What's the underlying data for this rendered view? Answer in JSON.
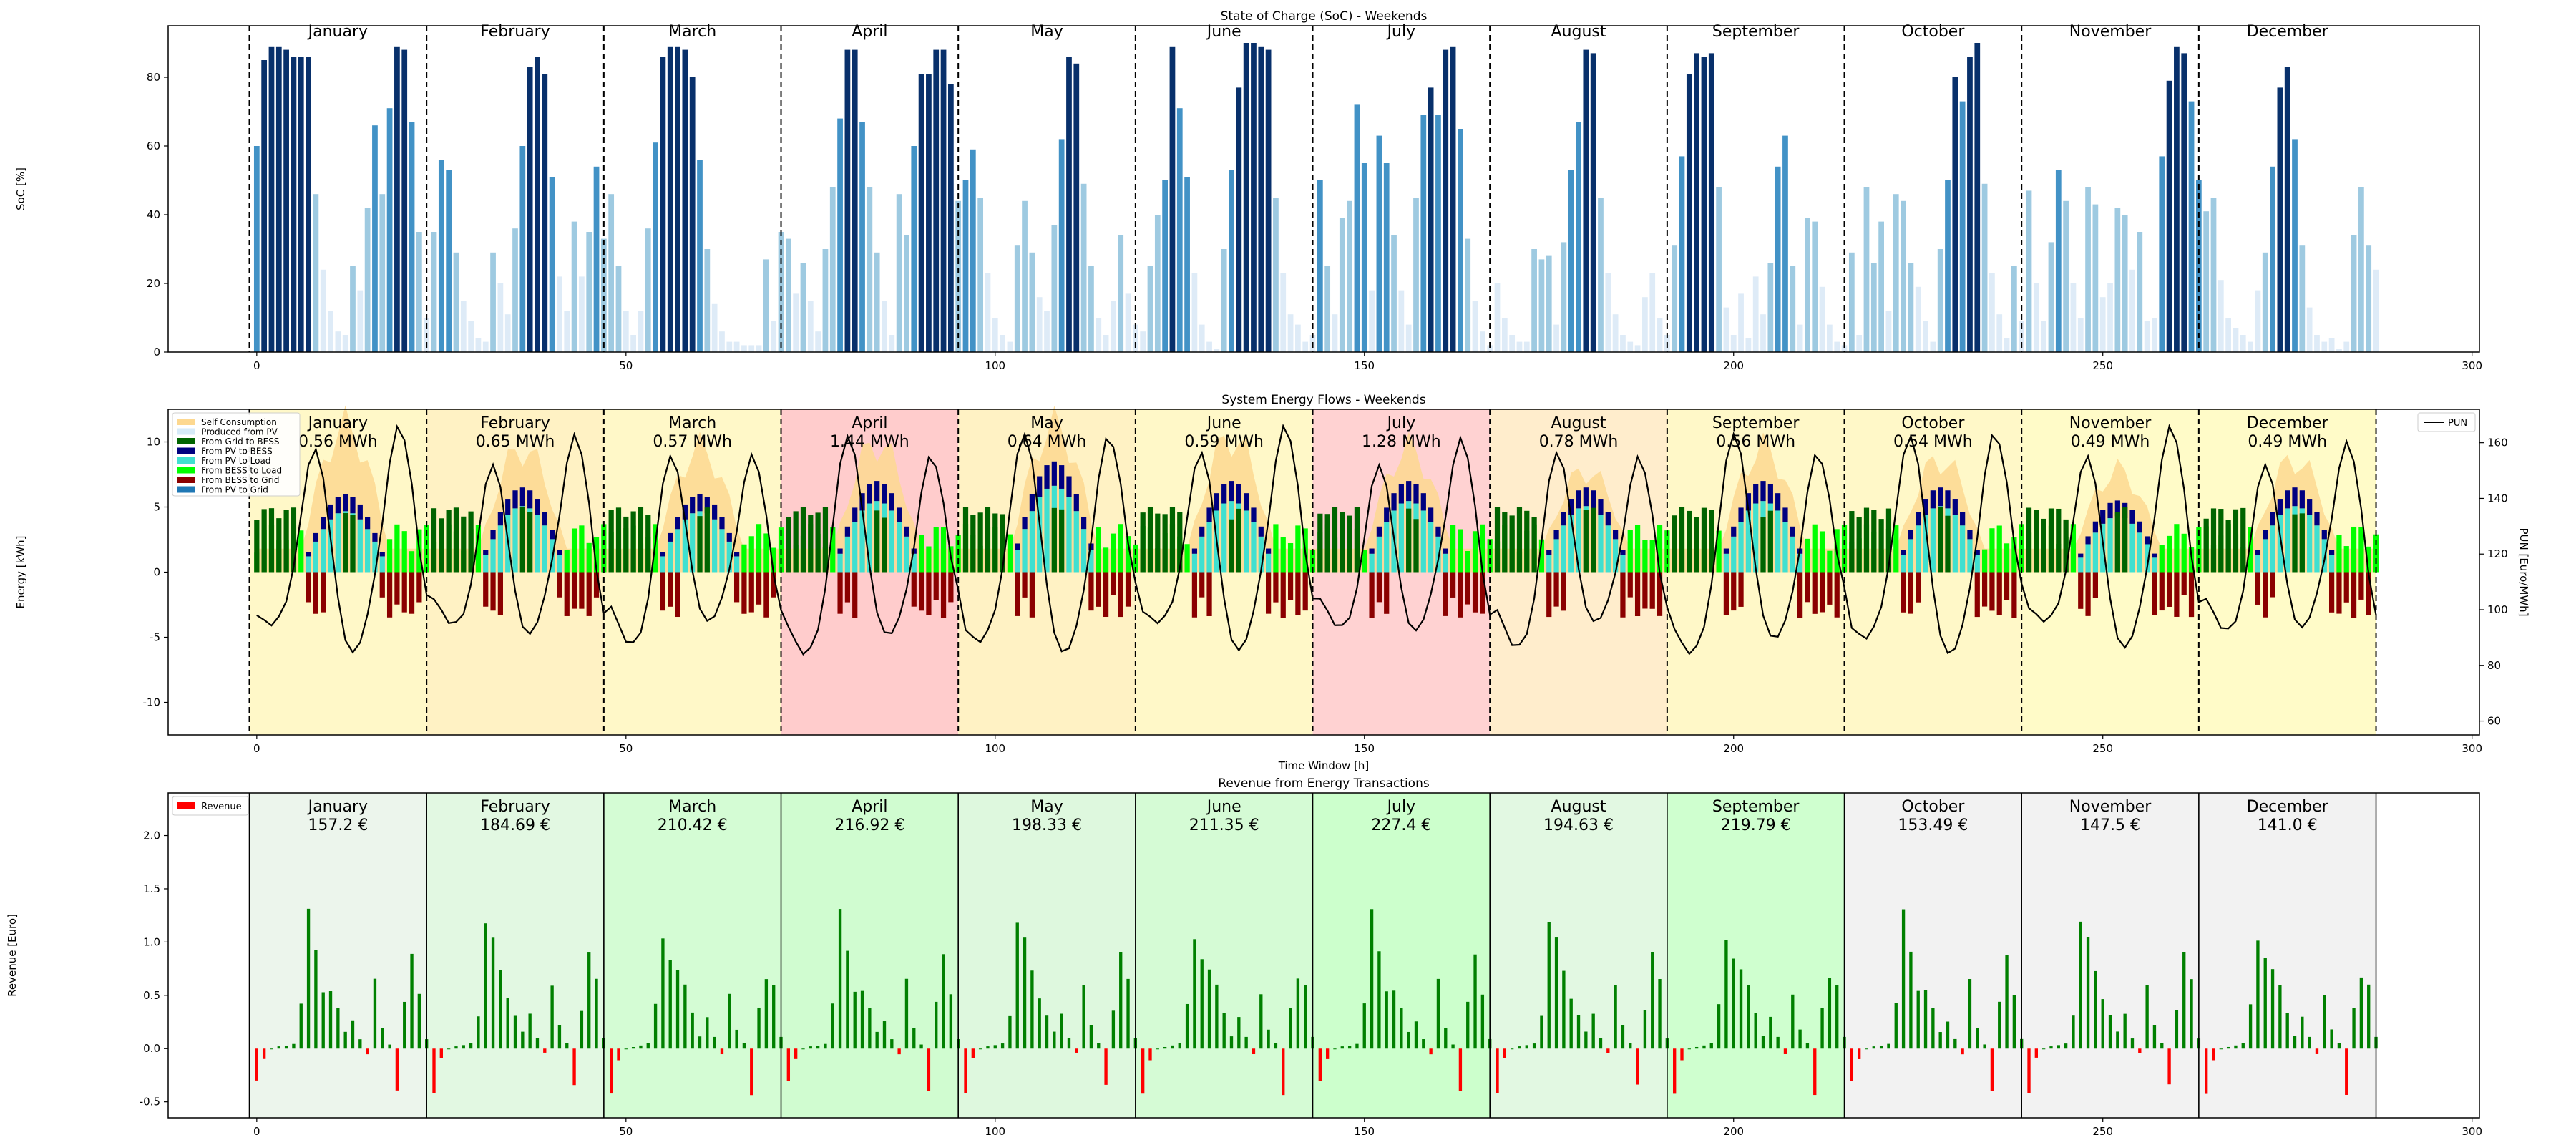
{
  "chart_data": [
    {
      "type": "bar",
      "title": "State of Charge (SoC) - Weekends",
      "xlabel": "",
      "ylabel": "SoC [%]",
      "xlim": [
        -12,
        301
      ],
      "ylim": [
        0,
        95
      ],
      "x_ticks": [
        0,
        50,
        100,
        150,
        200,
        250,
        300
      ],
      "y_ticks": [
        0,
        20,
        40,
        60,
        80
      ],
      "month_labels": [
        "January",
        "February",
        "March",
        "April",
        "May",
        "June",
        "July",
        "August",
        "September",
        "October",
        "November",
        "December"
      ],
      "month_boundaries": [
        -1,
        23,
        47,
        71,
        95,
        119,
        143,
        167,
        191,
        215,
        239,
        263
      ],
      "color_scale": [
        "#deebf7",
        "#9ecae1",
        "#4292c6",
        "#08306b"
      ],
      "values": [
        [
          60,
          85,
          89,
          89,
          88,
          86,
          86,
          86,
          46,
          24,
          12,
          6,
          5,
          25,
          18,
          42,
          66,
          46,
          71,
          89,
          88,
          67,
          35,
          10
        ],
        [
          35,
          56,
          53,
          29,
          15,
          9,
          4,
          3,
          29,
          20,
          11,
          36,
          60,
          83,
          86,
          81,
          51,
          22,
          12,
          38,
          22,
          35,
          54,
          33
        ],
        [
          46,
          25,
          12,
          5,
          12,
          36,
          61,
          86,
          89,
          89,
          88,
          80,
          56,
          30,
          14,
          6,
          3,
          3,
          2,
          2,
          2,
          27,
          9,
          35
        ],
        [
          33,
          17,
          26,
          15,
          6,
          30,
          48,
          68,
          88,
          88,
          67,
          48,
          29,
          15,
          5,
          46,
          34,
          60,
          81,
          81,
          88,
          88,
          78,
          44
        ],
        [
          50,
          59,
          45,
          23,
          10,
          5,
          3,
          31,
          44,
          29,
          16,
          12,
          37,
          62,
          86,
          84,
          49,
          25,
          10,
          5,
          15,
          34,
          17,
          8
        ],
        [
          6,
          25,
          40,
          50,
          89,
          71,
          51,
          23,
          8,
          3,
          1,
          30,
          53,
          77,
          90,
          90,
          89,
          88,
          45,
          23,
          11,
          8,
          3,
          5
        ],
        [
          50,
          25,
          11,
          39,
          44,
          72,
          55,
          18,
          63,
          55,
          34,
          18,
          8,
          45,
          69,
          77,
          69,
          88,
          89,
          65,
          33,
          15,
          6,
          2
        ],
        [
          20,
          10,
          5,
          3,
          3,
          30,
          27,
          28,
          8,
          32,
          53,
          67,
          88,
          87,
          45,
          23,
          11,
          5,
          3,
          2,
          16,
          23,
          10,
          5
        ],
        [
          31,
          57,
          81,
          87,
          86,
          87,
          48,
          13,
          5,
          17,
          4,
          22,
          11,
          26,
          54,
          63,
          25,
          8,
          39,
          38,
          19,
          8,
          3,
          2
        ],
        [
          29,
          5,
          48,
          26,
          38,
          12,
          46,
          44,
          26,
          19,
          9,
          3,
          30,
          50,
          80,
          73,
          86,
          90,
          49,
          23,
          11,
          4,
          25,
          9
        ],
        [
          47,
          20,
          9,
          32,
          53,
          44,
          20,
          10,
          48,
          43,
          16,
          20,
          42,
          40,
          24,
          35,
          9,
          10,
          57,
          79,
          89,
          87,
          73,
          50
        ],
        [
          41,
          45,
          21,
          10,
          7,
          5,
          3,
          18,
          29,
          54,
          77,
          83,
          62,
          31,
          13,
          5,
          3,
          4,
          1,
          3,
          34,
          48,
          31,
          24
        ]
      ]
    },
    {
      "type": "bar",
      "title": "System Energy Flows - Weekends",
      "xlabel": "Time Window [h]",
      "ylabel": "Energy [kWh]",
      "y2label": "PUN [Euro/MWh]",
      "xlim": [
        -12,
        301
      ],
      "ylim": [
        -12.5,
        12.5
      ],
      "y2lim": [
        55,
        172
      ],
      "x_ticks": [
        0,
        50,
        100,
        150,
        200,
        250,
        300
      ],
      "y_ticks": [
        -10,
        -5,
        0,
        5,
        10
      ],
      "y2_ticks": [
        60,
        80,
        100,
        120,
        140,
        160
      ],
      "legend_position": "top-left",
      "legend": [
        {
          "label": "Self Consumption",
          "color": "#fdd890",
          "kind": "patch"
        },
        {
          "label": "Produced from PV",
          "color": "#d6eaf8",
          "kind": "patch"
        },
        {
          "label": "From Grid to BESS",
          "color": "#006400",
          "kind": "patch"
        },
        {
          "label": "From PV to BESS",
          "color": "#000080",
          "kind": "patch"
        },
        {
          "label": "From PV to Load",
          "color": "#40e0d0",
          "kind": "patch"
        },
        {
          "label": "From BESS to Load",
          "color": "#00ff00",
          "kind": "patch"
        },
        {
          "label": "From BESS to Grid",
          "color": "#8b0000",
          "kind": "patch"
        },
        {
          "label": "From PV to Grid",
          "color": "#1f77b4",
          "kind": "patch"
        }
      ],
      "legend_right": [
        {
          "label": "PUN",
          "color": "#000000",
          "kind": "line"
        }
      ],
      "month_labels": [
        "January",
        "February",
        "March",
        "April",
        "May",
        "June",
        "July",
        "August",
        "September",
        "October",
        "November",
        "December"
      ],
      "month_values": [
        "0.56 MWh",
        "0.65 MWh",
        "0.57 MWh",
        "1.44 MWh",
        "0.64 MWh",
        "0.59 MWh",
        "1.28 MWh",
        "0.78 MWh",
        "0.56 MWh",
        "0.54 MWh",
        "0.49 MWh",
        "0.49 MWh"
      ],
      "month_backgrounds": [
        "#fff8c8",
        "#fff2c4",
        "#fff8c8",
        "#ffcccc",
        "#fff2c4",
        "#fff8c8",
        "#ffd2d2",
        "#ffedcc",
        "#fff8c8",
        "#fff8c8",
        "#fffbc8",
        "#fffbc8"
      ],
      "month_boundaries": [
        -1,
        23,
        47,
        71,
        95,
        119,
        143,
        167,
        191,
        215,
        239,
        263,
        287
      ],
      "pv_peak_kwh": [
        6,
        6.5,
        6,
        7,
        8.5,
        7,
        7,
        6.5,
        7,
        6.5,
        5.5,
        6.5
      ],
      "self_consumption_peak_kwh": [
        11,
        9,
        9,
        9.5,
        11,
        10,
        9,
        7,
        9,
        8,
        7,
        8
      ],
      "grid_to_bess_kwh": 5,
      "bess_to_grid_kwh": -3.5,
      "pun_hourly_shape": [
        98,
        94,
        90,
        92,
        97,
        110,
        130,
        150,
        158,
        150,
        130,
        110,
        95,
        90,
        92,
        100,
        112,
        128,
        148,
        160,
        155,
        140,
        118,
        104
      ]
    },
    {
      "type": "bar",
      "title": "Revenue from Energy Transactions",
      "xlabel": "",
      "ylabel": "Revenue [Euro]",
      "xlim": [
        -12,
        301
      ],
      "ylim": [
        -0.65,
        2.4
      ],
      "x_ticks": [
        0,
        50,
        100,
        150,
        200,
        250,
        300
      ],
      "y_ticks": [
        -0.5,
        0.0,
        0.5,
        1.0,
        1.5,
        2.0
      ],
      "legend_position": "top-left",
      "legend": [
        {
          "label": "Revenue",
          "color": "#ff0000",
          "kind": "patch"
        }
      ],
      "positive_color": "#008000",
      "negative_color": "#ff0000",
      "month_labels": [
        "January",
        "February",
        "March",
        "April",
        "May",
        "June",
        "July",
        "August",
        "September",
        "October",
        "November",
        "December"
      ],
      "month_values": [
        "157.2 €",
        "184.69 €",
        "210.42 €",
        "216.92 €",
        "198.33 €",
        "211.35 €",
        "227.4 €",
        "194.63 €",
        "219.79 €",
        "153.49 €",
        "147.5 €",
        "141.0 €"
      ],
      "month_backgrounds": [
        "#ecf5ec",
        "#e2f8e2",
        "#d4fcd4",
        "#d0fcd0",
        "#def8de",
        "#d5fbd5",
        "#ccffcc",
        "#e2f8e2",
        "#cfffcf",
        "#f2f2f2",
        "#f2f2f2",
        "#f2f2f2"
      ],
      "month_boundaries": [
        -1,
        23,
        47,
        71,
        95,
        119,
        143,
        167,
        191,
        215,
        239,
        263,
        287
      ],
      "hourly_profile": [
        -0.4,
        -0.1,
        0.0,
        0.02,
        0.03,
        0.05,
        0.4,
        1.2,
        0.95,
        0.7,
        0.55,
        0.35,
        0.15,
        0.3,
        0.1,
        -0.05,
        0.6,
        0.2,
        0.05,
        -0.4,
        0.4,
        0.85,
        0.6,
        0.1
      ]
    }
  ]
}
